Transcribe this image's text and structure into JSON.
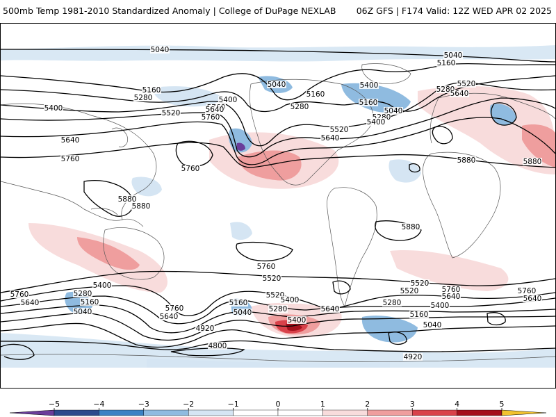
{
  "header": {
    "title": "500mb Temp 1981-2010 Standardized Anomaly | College of DuPage NEXLAB",
    "run_info": "06Z GFS | F174 Valid: 12Z WED APR 02 2025"
  },
  "colors": {
    "cold_extreme": "#6a3d9a",
    "cold_strong": "#2c4a8c",
    "cold": "#3b82c4",
    "cool": "#8fbbe0",
    "cool_light": "#d5e5f3",
    "neutral": "#ffffff",
    "warm_light": "#f8dcdc",
    "warm": "#ef9e9e",
    "warm_strong": "#d9424a",
    "hot": "#a50f1c",
    "hot_extreme": "#6b0010",
    "overflow_high": "#f2c230"
  },
  "legend": {
    "ticks": [
      "−5",
      "−4",
      "−3",
      "−2",
      "−1",
      "0",
      "1",
      "2",
      "3",
      "4",
      "5"
    ]
  },
  "contour_labels": [
    {
      "text": "5040"
    },
    {
      "text": "5040"
    },
    {
      "text": "5160"
    },
    {
      "text": "5280"
    },
    {
      "text": "5400"
    },
    {
      "text": "5160"
    },
    {
      "text": "5280"
    },
    {
      "text": "5520"
    },
    {
      "text": "5640"
    },
    {
      "text": "5400"
    },
    {
      "text": "5760"
    },
    {
      "text": "5040"
    },
    {
      "text": "5160"
    },
    {
      "text": "5280"
    },
    {
      "text": "5400"
    },
    {
      "text": "5520"
    },
    {
      "text": "5640"
    },
    {
      "text": "5760"
    },
    {
      "text": "5040"
    },
    {
      "text": "5160"
    },
    {
      "text": "5280"
    },
    {
      "text": "5520"
    },
    {
      "text": "5640"
    },
    {
      "text": "5400"
    },
    {
      "text": "5640"
    },
    {
      "text": "5760"
    },
    {
      "text": "5760"
    },
    {
      "text": "5880"
    },
    {
      "text": "5880"
    },
    {
      "text": "5880"
    },
    {
      "text": "5880"
    },
    {
      "text": "5880"
    },
    {
      "text": "5760"
    },
    {
      "text": "5520"
    },
    {
      "text": "5400"
    },
    {
      "text": "5280"
    },
    {
      "text": "5160"
    },
    {
      "text": "5040"
    },
    {
      "text": "5760"
    },
    {
      "text": "5640"
    },
    {
      "text": "5520"
    },
    {
      "text": "5400"
    },
    {
      "text": "5760"
    },
    {
      "text": "5640"
    },
    {
      "text": "4920"
    },
    {
      "text": "4800"
    },
    {
      "text": "5160"
    },
    {
      "text": "5040"
    },
    {
      "text": "5520"
    },
    {
      "text": "5400"
    },
    {
      "text": "5280"
    },
    {
      "text": "5640"
    },
    {
      "text": "5520"
    },
    {
      "text": "5760"
    },
    {
      "text": "5640"
    },
    {
      "text": "5400"
    },
    {
      "text": "5280"
    },
    {
      "text": "5160"
    },
    {
      "text": "5040"
    },
    {
      "text": "4920"
    },
    {
      "text": "5760"
    },
    {
      "text": "5640"
    }
  ]
}
